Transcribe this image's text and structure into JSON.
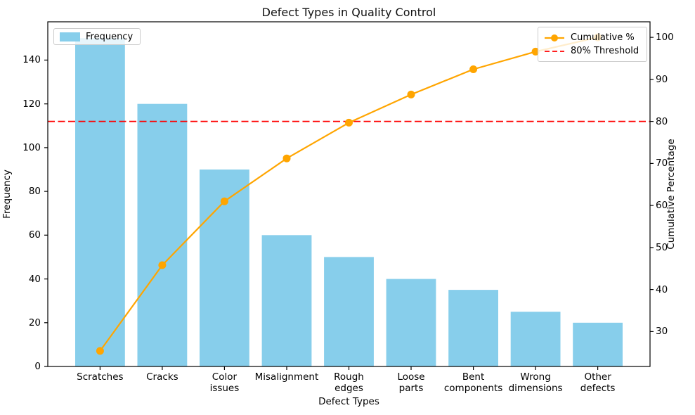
{
  "title": "Defect Types in Quality Control",
  "left_axis": {
    "label": "Frequency",
    "ticks": [
      0,
      20,
      40,
      60,
      80,
      100,
      120,
      140
    ],
    "lim": [
      0,
      157.5
    ]
  },
  "right_axis": {
    "label": "Cumulative Percentage",
    "ticks": [
      30,
      40,
      50,
      60,
      70,
      80,
      90,
      100
    ],
    "lim": [
      21.7,
      103.7
    ]
  },
  "x_axis": {
    "label": "Defect Types"
  },
  "legend_left": {
    "frequency_label": "Frequency"
  },
  "legend_right": {
    "cumulative_label": "Cumulative %",
    "threshold_label": "80% Threshold"
  },
  "colors": {
    "bar": "#87CEEB",
    "line": "#FFA500",
    "threshold": "#FF0000",
    "spine": "#000000"
  },
  "chart_data": {
    "type": "bar",
    "subtype": "pareto (bar + cumulative line)",
    "title": "Defect Types in Quality Control",
    "xlabel": "Defect Types",
    "ylabel_left": "Frequency",
    "ylabel_right": "Cumulative Percentage",
    "categories": [
      "Scratches",
      "Cracks",
      "Color issues",
      "Misalignment",
      "Rough edges",
      "Loose parts",
      "Bent components",
      "Wrong dimensions",
      "Other defects"
    ],
    "series": [
      {
        "name": "Frequency",
        "type": "bar",
        "axis": "left",
        "color": "#87CEEB",
        "values": [
          150,
          120,
          90,
          60,
          50,
          40,
          35,
          25,
          20
        ]
      },
      {
        "name": "Cumulative %",
        "type": "line",
        "axis": "right",
        "color": "#FFA500",
        "values": [
          25.4,
          45.8,
          61.0,
          71.2,
          79.7,
          86.4,
          92.4,
          96.6,
          100.0
        ]
      }
    ],
    "threshold_line": {
      "label": "80% Threshold",
      "value": 80,
      "axis": "right",
      "color": "#FF0000",
      "style": "dashed"
    },
    "ylim_left": [
      0,
      157.5
    ],
    "ylim_right": [
      21.7,
      103.7
    ],
    "grid": false,
    "legend_positions": [
      "upper left",
      "upper right"
    ]
  }
}
